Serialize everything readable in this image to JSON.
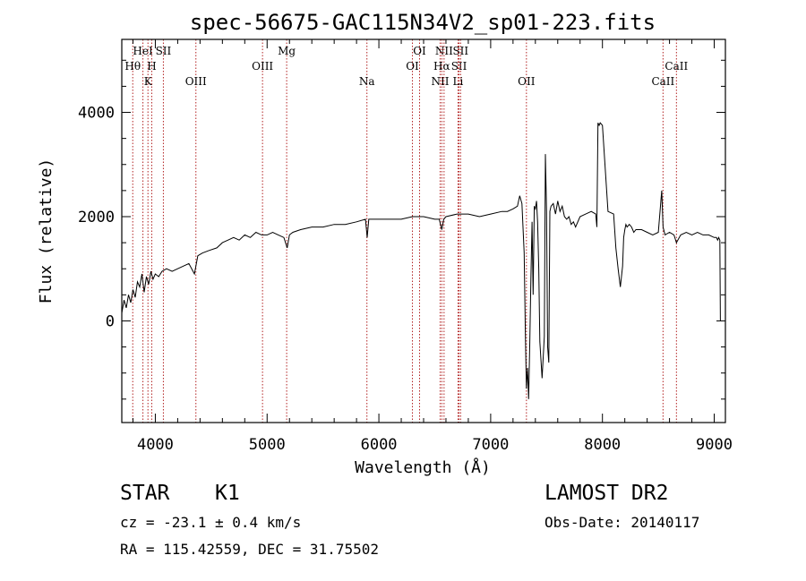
{
  "chart_data": {
    "type": "line",
    "title": "spec-56675-GAC115N34V2_sp01-223.fits",
    "xlabel": "Wavelength (Å)",
    "ylabel": "Flux (relative)",
    "xlim": [
      3700,
      9100
    ],
    "ylim": [
      -1950,
      5400
    ],
    "xticks": [
      4000,
      5000,
      6000,
      7000,
      8000,
      9000
    ],
    "yticks": [
      0,
      2000,
      4000
    ],
    "grid": false,
    "series": [
      {
        "x": [
          3700,
          3720,
          3740,
          3760,
          3780,
          3800,
          3820,
          3840,
          3860,
          3880,
          3900,
          3920,
          3940,
          3960,
          3980,
          4000,
          4030,
          4060,
          4100,
          4150,
          4200,
          4250,
          4300,
          4350,
          4380,
          4420,
          4480,
          4550,
          4600,
          4650,
          4700,
          4750,
          4800,
          4850,
          4900,
          4950,
          5000,
          5050,
          5100,
          5150,
          5180,
          5200,
          5230,
          5300,
          5400,
          5500,
          5600,
          5700,
          5800,
          5880,
          5895,
          5910,
          6000,
          6100,
          6200,
          6300,
          6400,
          6500,
          6540,
          6563,
          6580,
          6600,
          6700,
          6800,
          6900,
          7000,
          7100,
          7150,
          7200,
          7240,
          7260,
          7280,
          7300,
          7310,
          7320,
          7330,
          7340,
          7350,
          7360,
          7370,
          7380,
          7390,
          7400,
          7410,
          7420,
          7430,
          7440,
          7460,
          7480,
          7490,
          7500,
          7510,
          7520,
          7530,
          7540,
          7560,
          7580,
          7600,
          7620,
          7640,
          7660,
          7680,
          7700,
          7720,
          7740,
          7760,
          7800,
          7850,
          7900,
          7940,
          7950,
          7960,
          7970,
          7980,
          8000,
          8050,
          8100,
          8120,
          8140,
          8160,
          8180,
          8190,
          8200,
          8210,
          8220,
          8240,
          8260,
          8280,
          8300,
          8350,
          8400,
          8450,
          8500,
          8530,
          8542,
          8560,
          8600,
          8640,
          8662,
          8700,
          8750,
          8800,
          8850,
          8900,
          8950,
          9000,
          9020,
          9030,
          9040,
          9050,
          9055
        ],
        "y": [
          150,
          400,
          250,
          500,
          350,
          600,
          450,
          750,
          650,
          900,
          550,
          850,
          700,
          950,
          800,
          900,
          850,
          950,
          1000,
          950,
          1000,
          1050,
          1100,
          900,
          1250,
          1300,
          1350,
          1400,
          1500,
          1550,
          1600,
          1550,
          1650,
          1600,
          1700,
          1650,
          1650,
          1700,
          1650,
          1600,
          1400,
          1650,
          1700,
          1750,
          1800,
          1800,
          1850,
          1850,
          1900,
          1950,
          1600,
          1950,
          1950,
          1950,
          1950,
          2000,
          2000,
          1950,
          1950,
          1750,
          1950,
          2000,
          2050,
          2050,
          2000,
          2050,
          2100,
          2100,
          2150,
          2200,
          2400,
          2250,
          1300,
          -200,
          -1300,
          -900,
          -1500,
          -400,
          800,
          1900,
          500,
          2200,
          2150,
          2300,
          1900,
          1000,
          -400,
          -1100,
          -300,
          3200,
          2100,
          -500,
          -800,
          2100,
          2200,
          2250,
          2050,
          2300,
          2100,
          2200,
          2000,
          1950,
          2000,
          1850,
          1900,
          1800,
          2000,
          2050,
          2100,
          2050,
          1800,
          3800,
          3750,
          3800,
          3750,
          2100,
          2050,
          1400,
          1000,
          650,
          1050,
          1600,
          1750,
          1850,
          1800,
          1850,
          1800,
          1700,
          1750,
          1750,
          1700,
          1650,
          1700,
          2500,
          1800,
          1650,
          1700,
          1650,
          1500,
          1650,
          1700,
          1650,
          1700,
          1650,
          1650,
          1600,
          1600,
          1550,
          1600,
          1550,
          0
        ]
      }
    ],
    "spectral_lines": [
      {
        "name": "Hθ",
        "wave": 3798,
        "row": 2
      },
      {
        "name": "HeI",
        "wave": 3889,
        "row": 1
      },
      {
        "name": "K",
        "wave": 3934,
        "row": 3
      },
      {
        "name": "SII",
        "wave": 4072,
        "row": 1
      },
      {
        "name": "H",
        "wave": 3968,
        "row": 2
      },
      {
        "name": "OIII",
        "wave": 4363,
        "row": 3
      },
      {
        "name": "OIII",
        "wave": 4959,
        "row": 2
      },
      {
        "name": "Mg",
        "wave": 5175,
        "row": 1
      },
      {
        "name": "Na",
        "wave": 5893,
        "row": 3
      },
      {
        "name": "OI",
        "wave": 6300,
        "row": 2
      },
      {
        "name": "OI",
        "wave": 6364,
        "row": 1
      },
      {
        "name": "NII",
        "wave": 6548,
        "row": 3
      },
      {
        "name": "NII",
        "wave": 6583,
        "row": 1
      },
      {
        "name": "Hα",
        "wave": 6563,
        "row": 2
      },
      {
        "name": "SII",
        "wave": 6717,
        "row": 2
      },
      {
        "name": "SII",
        "wave": 6731,
        "row": 1
      },
      {
        "name": "Li",
        "wave": 6708,
        "row": 3
      },
      {
        "name": "OII",
        "wave": 7320,
        "row": 3
      },
      {
        "name": "CaII",
        "wave": 8542,
        "row": 3
      },
      {
        "name": "CaII",
        "wave": 8662,
        "row": 2
      }
    ]
  },
  "info": {
    "class": "STAR",
    "subclass": "K1",
    "survey": "LAMOST DR2",
    "cz": "cz = -23.1 ± 0.4 km/s",
    "obs_date": "Obs-Date: 20140117",
    "coords": "RA = 115.42559, DEC =  31.75502"
  }
}
